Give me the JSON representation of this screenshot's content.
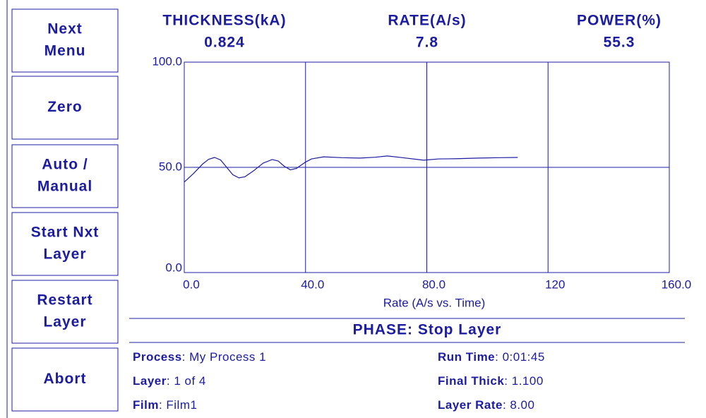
{
  "buttons": [
    [
      "Next",
      "Menu"
    ],
    [
      "Zero"
    ],
    [
      "Auto /",
      "Manual"
    ],
    [
      "Start Nxt",
      "Layer"
    ],
    [
      "Restart",
      "Layer"
    ],
    [
      "Abort"
    ]
  ],
  "readouts": [
    {
      "label": "THICKNESS(kA)",
      "value": 0.824
    },
    {
      "label": "RATE(A/s)",
      "value": 7.8
    },
    {
      "label": "POWER(%)",
      "value": 55.3
    }
  ],
  "chart_data": {
    "type": "line",
    "xlabel": "Rate (A/s vs. Time)",
    "color": "#1c1ca0",
    "x": [
      0,
      3,
      6,
      8,
      10,
      12,
      14,
      16,
      18,
      20,
      23,
      26,
      29,
      31,
      33,
      35,
      37,
      40,
      42,
      46,
      52,
      58,
      63,
      67,
      72,
      79,
      84,
      90,
      97,
      104,
      110
    ],
    "values": [
      43,
      47,
      51.5,
      53.8,
      54.7,
      53.5,
      50,
      46.5,
      45,
      45.5,
      48.5,
      52,
      53.7,
      53,
      50.5,
      48.8,
      49.5,
      52.5,
      54,
      55,
      54.6,
      54.4,
      54.8,
      55.4,
      54.6,
      53.4,
      54,
      54.1,
      54.4,
      54.6,
      54.7
    ],
    "xlim": [
      0,
      160
    ],
    "ylim": [
      0,
      100
    ],
    "xticks": [
      {
        "value": 0,
        "label": "0.0"
      },
      {
        "value": 40,
        "label": "40.0"
      },
      {
        "value": 80,
        "label": "80.0"
      },
      120,
      {
        "value": 160,
        "label": "160.0"
      }
    ],
    "yticks": [
      {
        "value": 0,
        "label": "0.0"
      },
      {
        "value": 50,
        "label": "50.0"
      },
      {
        "value": 100,
        "label": "100.0"
      }
    ],
    "grid": true
  },
  "phase": "PHASE: Stop Layer",
  "info": [
    {
      "label": "Process",
      "value": ": My Process 1"
    },
    {
      "label": "Run Time",
      "value": ":  0:01:45"
    },
    {
      "label": "Layer",
      "value": ": 1 of 4"
    },
    {
      "label": "Final Thick",
      "value": ": 1.100"
    },
    {
      "label": "Film",
      "value": ": Film1"
    },
    {
      "label": "Layer Rate",
      "value": ": 8.00"
    }
  ]
}
